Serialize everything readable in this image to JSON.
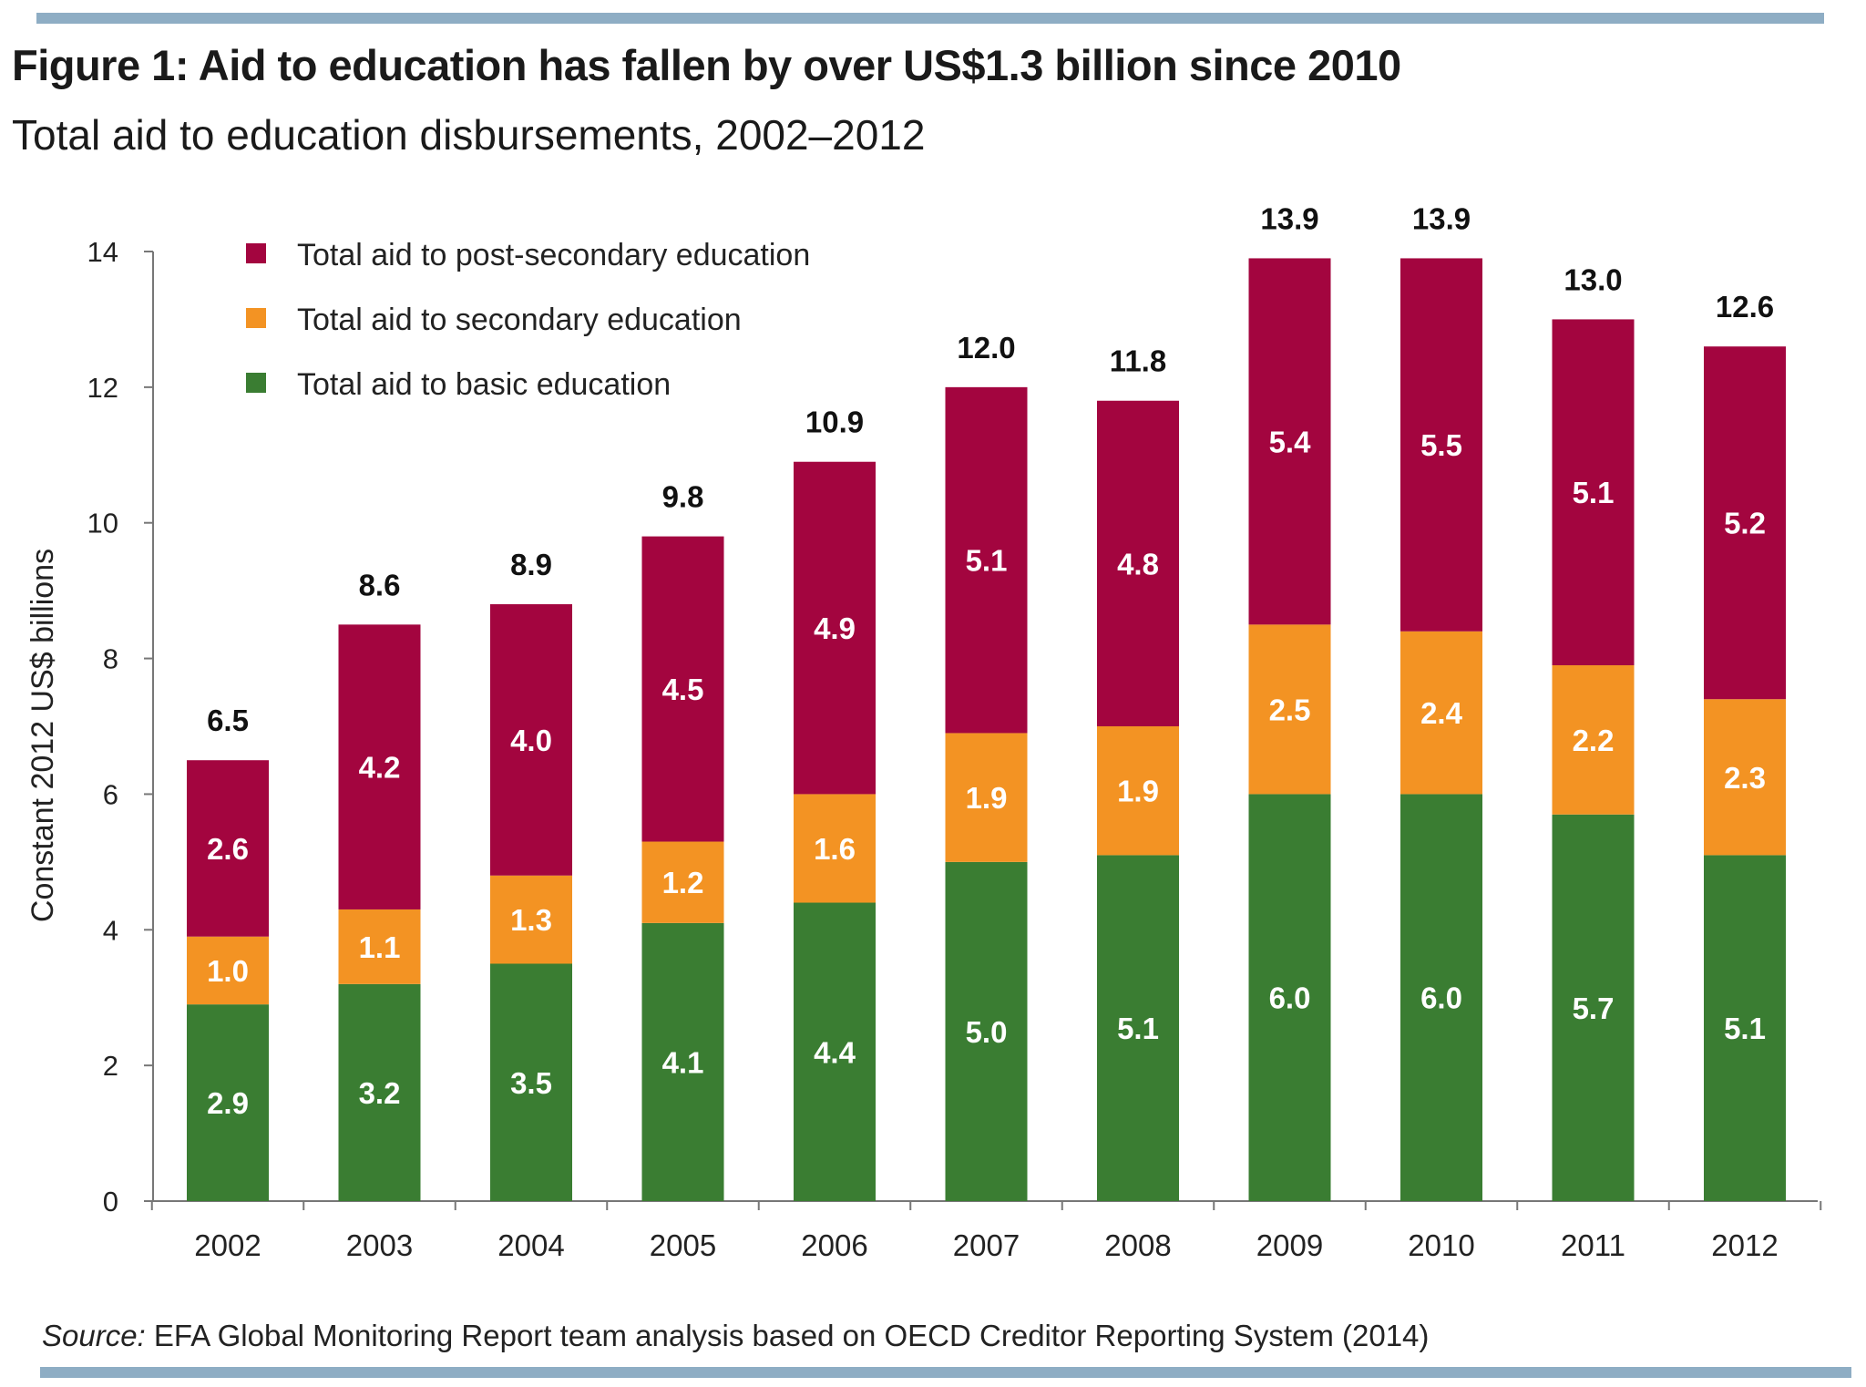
{
  "header": {
    "title": "Figure 1: Aid to education has fallen by over US$1.3 billion since 2010",
    "subtitle": "Total aid to education disbursements, 2002–2012"
  },
  "source": {
    "prefix": "Source:",
    "text": " EFA Global Monitoring Report team analysis based on OECD Creditor Reporting System (2014)"
  },
  "colors": {
    "basic": "#3a7d32",
    "secondary": "#f39323",
    "post_secondary": "#a3053f",
    "rule": "#8eadc4"
  },
  "chart_data": {
    "type": "bar",
    "stacked": true,
    "categories": [
      "2002",
      "2003",
      "2004",
      "2005",
      "2006",
      "2007",
      "2008",
      "2009",
      "2010",
      "2011",
      "2012"
    ],
    "series": [
      {
        "name": "Total aid to basic education",
        "color": "#3a7d32",
        "values": [
          2.9,
          3.2,
          3.5,
          4.1,
          4.4,
          5.0,
          5.1,
          6.0,
          6.0,
          5.7,
          5.1
        ]
      },
      {
        "name": "Total aid to secondary education",
        "color": "#f39323",
        "values": [
          1.0,
          1.1,
          1.3,
          1.2,
          1.6,
          1.9,
          1.9,
          2.5,
          2.4,
          2.2,
          2.3
        ]
      },
      {
        "name": "Total aid to post-secondary education",
        "color": "#a3053f",
        "values": [
          2.6,
          4.2,
          4.0,
          4.5,
          4.9,
          5.1,
          4.8,
          5.4,
          5.5,
          5.1,
          5.2
        ]
      }
    ],
    "totals": [
      6.5,
      8.6,
      8.9,
      9.8,
      10.9,
      12.0,
      11.8,
      13.9,
      13.9,
      13.0,
      12.6
    ],
    "ylabel": "Constant 2012 US$ billions",
    "xlabel": "",
    "ylim": [
      0,
      14
    ],
    "yticks": [
      0,
      2,
      4,
      6,
      8,
      10,
      12,
      14
    ],
    "legend_order": [
      "Total aid to post-secondary education",
      "Total aid to secondary education",
      "Total aid to basic education"
    ],
    "legend_position": "top-left",
    "grid": false
  }
}
